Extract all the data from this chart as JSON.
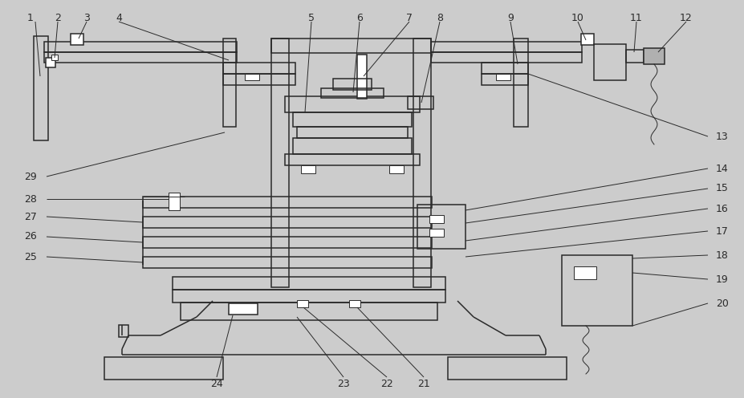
{
  "bg_color": "#cccccc",
  "line_color": "#2a2a2a",
  "lw": 1.1,
  "tlw": 0.7,
  "fs": 9,
  "white": "#ffffff"
}
